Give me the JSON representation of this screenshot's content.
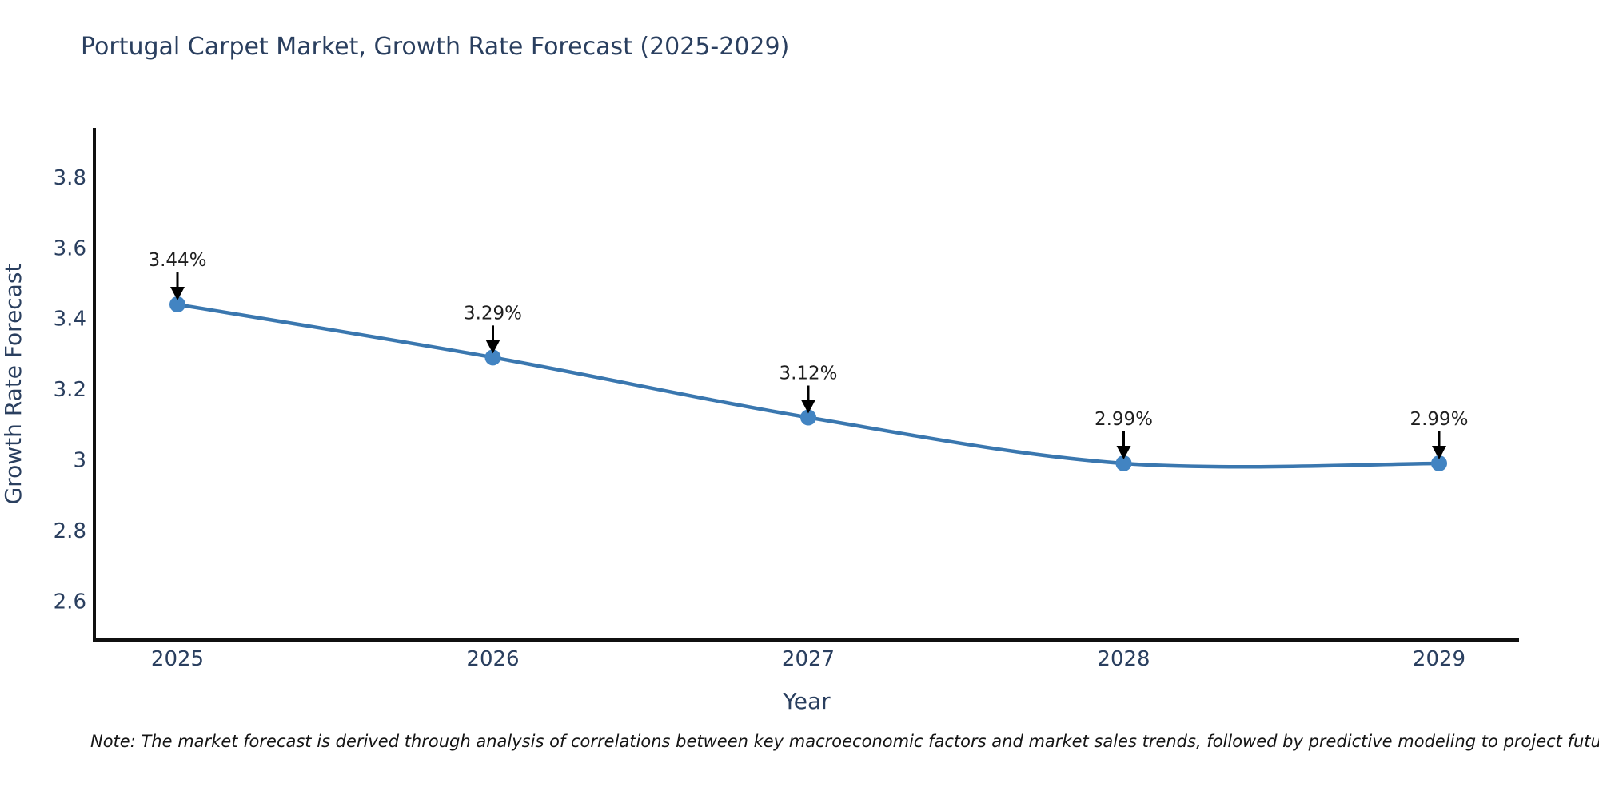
{
  "note": "Note: The market forecast is derived through analysis of correlations between key macroeconomic factors and market sales trends, followed by predictive modeling to project future sales",
  "chart_data": {
    "type": "line",
    "title": "Portugal Carpet Market, Growth Rate Forecast (2025-2029)",
    "xlabel": "Year",
    "ylabel": "Growth Rate Forecast",
    "x": [
      "2025",
      "2026",
      "2027",
      "2028",
      "2029"
    ],
    "series": [
      {
        "name": "Growth Rate Forecast",
        "values": [
          3.44,
          3.29,
          3.12,
          2.99,
          2.99
        ]
      }
    ],
    "point_labels": [
      "3.44%",
      "3.29%",
      "3.12%",
      "2.99%",
      "2.99%"
    ],
    "ylim": [
      2.49,
      3.94
    ],
    "ytick_values": [
      2.6,
      2.8,
      3,
      3.2,
      3.4,
      3.6,
      3.8
    ],
    "ytick_labels": [
      "2.6",
      "2.8",
      "3",
      "3.2",
      "3.4",
      "3.6",
      "3.8"
    ],
    "grid": false,
    "legend_position": "none",
    "annotation_style": "down-arrow",
    "colors": {
      "line": "#3a77af",
      "marker": "#4284c2",
      "axis_line": "#101010",
      "title_text": "#2a3f5f",
      "tick_text": "#2a3f5f",
      "annotation_text": "#1f1f1f",
      "annotation_arrow": "#000000",
      "background": "#ffffff"
    }
  }
}
